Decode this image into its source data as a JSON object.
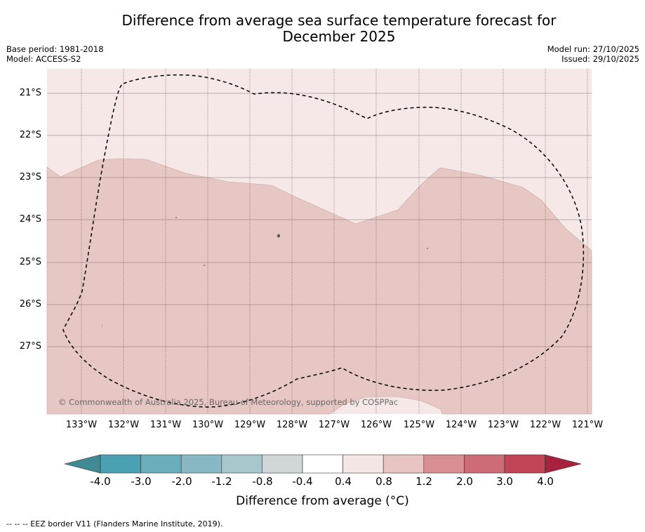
{
  "title_line1": "Difference from average sea surface temperature forecast for",
  "title_line2": "December 2025",
  "base_period": "Base period: 1981-2018",
  "model": "Model: ACCESS-S2",
  "model_run": "Model run: 27/10/2025",
  "issued": "Issued: 29/10/2025",
  "copyright": "© Commonwealth of Australia 2025, Bureau of Meteorology, supported by COSPPac",
  "lat_labels": [
    "21°S",
    "22°S",
    "23°S",
    "24°S",
    "25°S",
    "26°S",
    "27°S"
  ],
  "lon_labels": [
    "133°W",
    "132°W",
    "131°W",
    "130°W",
    "129°W",
    "128°W",
    "127°W",
    "126°W",
    "125°W",
    "124°W",
    "123°W",
    "122°W",
    "121°W"
  ],
  "colorbar": {
    "ticks": [
      "-4.0",
      "-3.0",
      "-2.0",
      "-1.2",
      "-0.8",
      "-0.4",
      "0.4",
      "0.8",
      "1.2",
      "2.0",
      "3.0",
      "4.0"
    ],
    "colors": [
      "#4aa1b3",
      "#6aaebc",
      "#88b8c4",
      "#a8c7cc",
      "#d1d6d8",
      "#ffffff",
      "#f5e6e6",
      "#e8c5c2",
      "#d98e95",
      "#cd6b76",
      "#c04556"
    ],
    "under_color": "#3f8a94",
    "over_color": "#a9223d",
    "title": "Difference from average (°C)"
  },
  "map_colors": {
    "light": "#f5e8e7",
    "mid": "#e7c7c3"
  },
  "footnote": "--  --  -- EEZ border V11 (Flanders Marine Institute, 2019)."
}
